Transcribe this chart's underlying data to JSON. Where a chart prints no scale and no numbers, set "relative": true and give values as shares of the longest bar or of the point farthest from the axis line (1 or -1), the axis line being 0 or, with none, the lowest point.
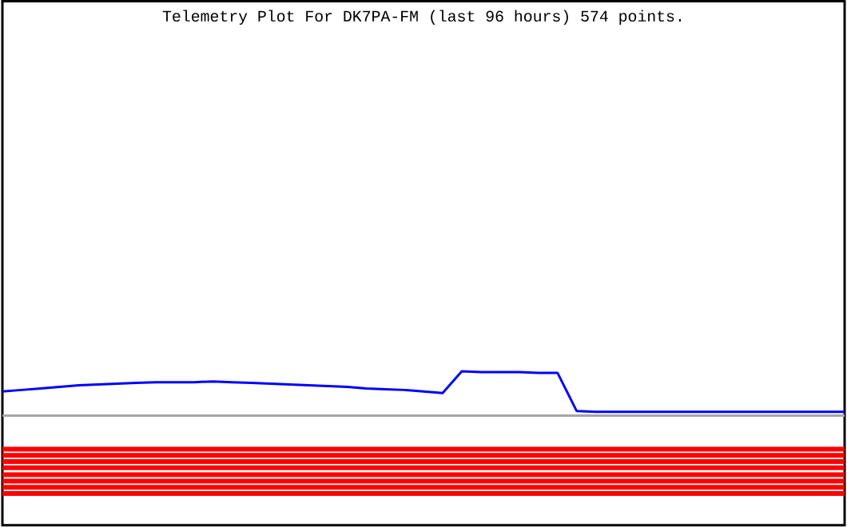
{
  "chart_data": {
    "type": "line",
    "title": "Telemetry Plot For DK7PA-FM (last 96 hours) 574 points.",
    "relative": true,
    "marker": "none",
    "line_style": "solid",
    "categories": [
      null,
      null,
      null,
      null,
      null,
      null,
      null,
      null,
      null,
      null,
      null,
      null,
      null,
      null,
      null,
      null,
      null,
      null,
      null,
      null,
      null,
      null,
      null,
      null,
      null,
      null,
      null,
      null,
      null,
      null,
      null,
      null,
      null,
      null,
      null,
      null,
      null,
      null,
      null,
      null,
      null,
      null,
      null,
      null,
      null
    ],
    "series": [
      {
        "color": "#0000ff",
        "values": [
          0.31,
          0.33,
          0.35,
          0.37,
          0.39,
          0.4,
          0.41,
          0.42,
          0.43,
          0.43,
          0.43,
          0.44,
          0.43,
          0.42,
          0.41,
          0.4,
          0.39,
          0.38,
          0.37,
          0.35,
          0.34,
          0.33,
          0.31,
          0.29,
          0.57,
          0.56,
          0.56,
          0.56,
          0.55,
          0.55,
          0.06,
          0.05,
          0.05,
          0.05,
          0.05,
          0.05,
          0.05,
          0.05,
          0.05,
          0.05,
          0.05,
          0.05,
          0.05,
          0.05,
          0.05
        ]
      },
      {
        "color": "#ff0000",
        "values": [
          -0.43,
          -0.43,
          -0.43,
          -0.43,
          -0.43,
          -0.43,
          -0.43,
          -0.43,
          -0.43,
          -0.43,
          -0.43,
          -0.43,
          -0.43,
          -0.43,
          -0.43,
          -0.43,
          -0.43,
          -0.43,
          -0.43,
          -0.43,
          -0.43,
          -0.43,
          -0.43,
          -0.43,
          -0.43,
          -0.43,
          -0.43,
          -0.43,
          -0.43,
          -0.43,
          -0.43,
          -0.43,
          -0.43,
          -0.43,
          -0.43,
          -0.43,
          -0.43,
          -0.43,
          -0.43,
          -0.43,
          -0.43,
          -0.43,
          -0.43,
          -0.43,
          -0.43
        ]
      },
      {
        "color": "#ff0000",
        "values": [
          -0.51,
          -0.51,
          -0.51,
          -0.51,
          -0.51,
          -0.51,
          -0.51,
          -0.51,
          -0.51,
          -0.51,
          -0.51,
          -0.51,
          -0.51,
          -0.51,
          -0.51,
          -0.51,
          -0.51,
          -0.51,
          -0.51,
          -0.51,
          -0.51,
          -0.51,
          -0.51,
          -0.51,
          -0.51,
          -0.51,
          -0.51,
          -0.51,
          -0.51,
          -0.51,
          -0.51,
          -0.51,
          -0.51,
          -0.51,
          -0.51,
          -0.51,
          -0.51,
          -0.51,
          -0.51,
          -0.51,
          -0.51,
          -0.51,
          -0.51,
          -0.51,
          -0.51
        ]
      },
      {
        "color": "#ff0000",
        "values": [
          -0.59,
          -0.59,
          -0.59,
          -0.59,
          -0.59,
          -0.59,
          -0.59,
          -0.59,
          -0.59,
          -0.59,
          -0.59,
          -0.59,
          -0.59,
          -0.59,
          -0.59,
          -0.59,
          -0.59,
          -0.59,
          -0.59,
          -0.59,
          -0.59,
          -0.59,
          -0.59,
          -0.59,
          -0.59,
          -0.59,
          -0.59,
          -0.59,
          -0.59,
          -0.59,
          -0.59,
          -0.59,
          -0.59,
          -0.59,
          -0.59,
          -0.59,
          -0.59,
          -0.59,
          -0.59,
          -0.59,
          -0.59,
          -0.59,
          -0.59,
          -0.59,
          -0.59
        ]
      },
      {
        "color": "#ff0000",
        "values": [
          -0.67,
          -0.67,
          -0.67,
          -0.67,
          -0.67,
          -0.67,
          -0.67,
          -0.67,
          -0.67,
          -0.67,
          -0.67,
          -0.67,
          -0.67,
          -0.67,
          -0.67,
          -0.67,
          -0.67,
          -0.67,
          -0.67,
          -0.67,
          -0.67,
          -0.67,
          -0.67,
          -0.67,
          -0.67,
          -0.67,
          -0.67,
          -0.67,
          -0.67,
          -0.67,
          -0.67,
          -0.67,
          -0.67,
          -0.67,
          -0.67,
          -0.67,
          -0.67,
          -0.67,
          -0.67,
          -0.67,
          -0.67,
          -0.67,
          -0.67,
          -0.67,
          -0.67
        ]
      },
      {
        "color": "#ff0000",
        "values": [
          -0.76,
          -0.76,
          -0.76,
          -0.76,
          -0.76,
          -0.76,
          -0.76,
          -0.76,
          -0.76,
          -0.76,
          -0.76,
          -0.76,
          -0.76,
          -0.76,
          -0.76,
          -0.76,
          -0.76,
          -0.76,
          -0.76,
          -0.76,
          -0.76,
          -0.76,
          -0.76,
          -0.76,
          -0.76,
          -0.76,
          -0.76,
          -0.76,
          -0.76,
          -0.76,
          -0.76,
          -0.76,
          -0.76,
          -0.76,
          -0.76,
          -0.76,
          -0.76,
          -0.76,
          -0.76,
          -0.76,
          -0.76,
          -0.76,
          -0.76,
          -0.76,
          -0.76
        ]
      },
      {
        "color": "#ff0000",
        "values": [
          -0.84,
          -0.84,
          -0.84,
          -0.84,
          -0.84,
          -0.84,
          -0.84,
          -0.84,
          -0.84,
          -0.84,
          -0.84,
          -0.84,
          -0.84,
          -0.84,
          -0.84,
          -0.84,
          -0.84,
          -0.84,
          -0.84,
          -0.84,
          -0.84,
          -0.84,
          -0.84,
          -0.84,
          -0.84,
          -0.84,
          -0.84,
          -0.84,
          -0.84,
          -0.84,
          -0.84,
          -0.84,
          -0.84,
          -0.84,
          -0.84,
          -0.84,
          -0.84,
          -0.84,
          -0.84,
          -0.84,
          -0.84,
          -0.84,
          -0.84,
          -0.84,
          -0.84
        ]
      },
      {
        "color": "#ff0000",
        "values": [
          -0.92,
          -0.92,
          -0.92,
          -0.92,
          -0.92,
          -0.92,
          -0.92,
          -0.92,
          -0.92,
          -0.92,
          -0.92,
          -0.92,
          -0.92,
          -0.92,
          -0.92,
          -0.92,
          -0.92,
          -0.92,
          -0.92,
          -0.92,
          -0.92,
          -0.92,
          -0.92,
          -0.92,
          -0.92,
          -0.92,
          -0.92,
          -0.92,
          -0.92,
          -0.92,
          -0.92,
          -0.92,
          -0.92,
          -0.92,
          -0.92,
          -0.92,
          -0.92,
          -0.92,
          -0.92,
          -0.92,
          -0.92,
          -0.92,
          -0.92,
          -0.92,
          -0.92
        ]
      },
      {
        "color": "#ff0000",
        "values": [
          -1.0,
          -1.0,
          -1.0,
          -1.0,
          -1.0,
          -1.0,
          -1.0,
          -1.0,
          -1.0,
          -1.0,
          -1.0,
          -1.0,
          -1.0,
          -1.0,
          -1.0,
          -1.0,
          -1.0,
          -1.0,
          -1.0,
          -1.0,
          -1.0,
          -1.0,
          -1.0,
          -1.0,
          -1.0,
          -1.0,
          -1.0,
          -1.0,
          -1.0,
          -1.0,
          -1.0,
          -1.0,
          -1.0,
          -1.0,
          -1.0,
          -1.0,
          -1.0,
          -1.0,
          -1.0,
          -1.0,
          -1.0,
          -1.0,
          -1.0,
          -1.0,
          -1.0
        ]
      }
    ]
  }
}
